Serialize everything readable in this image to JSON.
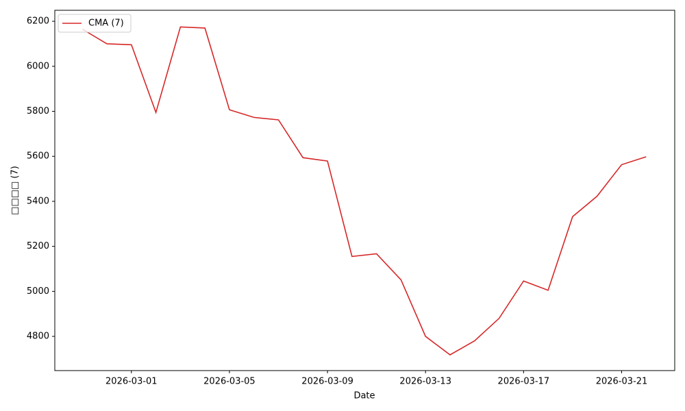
{
  "chart_data": {
    "type": "line",
    "x_label": "Date",
    "y_label": "□□□□ (7)",
    "x": [
      "2026-02-27",
      "2026-02-28",
      "2026-03-01",
      "2026-03-02",
      "2026-03-03",
      "2026-03-04",
      "2026-03-05",
      "2026-03-06",
      "2026-03-07",
      "2026-03-08",
      "2026-03-09",
      "2026-03-10",
      "2026-03-11",
      "2026-03-12",
      "2026-03-13",
      "2026-03-14",
      "2026-03-15",
      "2026-03-16",
      "2026-03-17",
      "2026-03-18",
      "2026-03-19",
      "2026-03-20",
      "2026-03-21",
      "2026-03-22"
    ],
    "series": [
      {
        "name": "CMA (7)",
        "color": "#d62728",
        "values": [
          6165,
          6100,
          6096,
          5795,
          6175,
          6170,
          5807,
          5773,
          5762,
          5594,
          5579,
          5155,
          5167,
          5051,
          4800,
          4718,
          4780,
          4880,
          5046,
          5005,
          5332,
          5423,
          5563,
          5598
        ]
      }
    ],
    "xlim": [
      "2026-02-25 21:00",
      "2026-03-23 04:00"
    ],
    "xticks": [
      "2026-03-01",
      "2026-03-05",
      "2026-03-09",
      "2026-03-13",
      "2026-03-17",
      "2026-03-21"
    ],
    "ylim": [
      4648,
      6249
    ],
    "yticks": [
      4800,
      5000,
      5200,
      5400,
      5600,
      5800,
      6000,
      6200
    ],
    "legend": "upper left",
    "grid": false
  }
}
